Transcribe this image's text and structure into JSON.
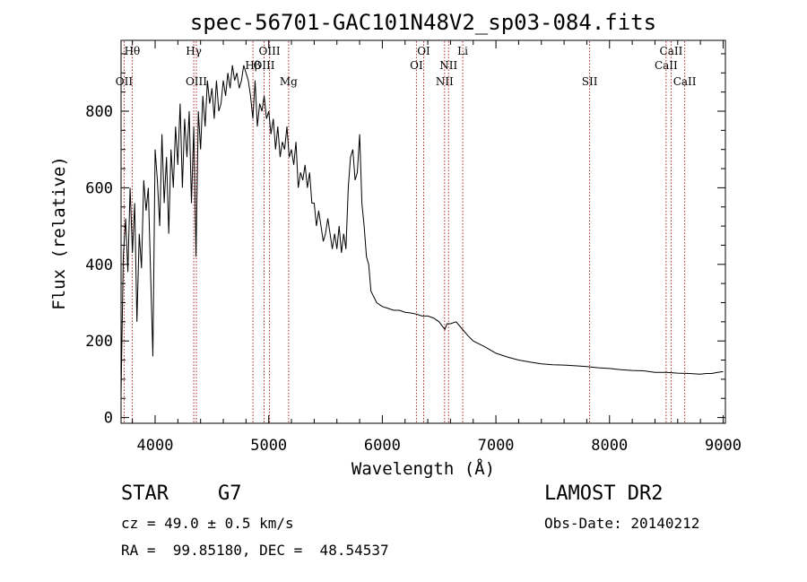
{
  "chart_data": {
    "type": "line",
    "title": "spec-56701-GAC101N48V2_sp03-084.fits",
    "xlabel": "Wavelength (Å)",
    "ylabel": "Flux (relative)",
    "xlim": [
      3700,
      9020
    ],
    "ylim": [
      -15,
      985
    ],
    "xticks": [
      4000,
      5000,
      6000,
      7000,
      8000,
      9000
    ],
    "yticks": [
      0,
      200,
      400,
      600,
      800
    ],
    "series": [
      {
        "x": [
          3700,
          3720,
          3740,
          3760,
          3780,
          3800,
          3820,
          3840,
          3860,
          3880,
          3900,
          3920,
          3940,
          3960,
          3980,
          4000,
          4020,
          4040,
          4060,
          4080,
          4100,
          4120,
          4140,
          4160,
          4180,
          4200,
          4220,
          4240,
          4260,
          4280,
          4300,
          4320,
          4340,
          4360,
          4380,
          4400,
          4420,
          4440,
          4460,
          4480,
          4500,
          4520,
          4540,
          4560,
          4580,
          4600,
          4620,
          4640,
          4660,
          4680,
          4700,
          4720,
          4740,
          4760,
          4780,
          4800,
          4820,
          4840,
          4860,
          4880,
          4900,
          4920,
          4940,
          4960,
          4980,
          5000,
          5020,
          5040,
          5060,
          5080,
          5100,
          5120,
          5140,
          5160,
          5180,
          5200,
          5220,
          5240,
          5260,
          5280,
          5300,
          5320,
          5340,
          5360,
          5380,
          5400,
          5420,
          5440,
          5460,
          5480,
          5500,
          5520,
          5540,
          5560,
          5580,
          5600,
          5620,
          5640,
          5660,
          5680,
          5700,
          5720,
          5740,
          5760,
          5780,
          5800,
          5820,
          5840,
          5860,
          5880,
          5900,
          5950,
          6000,
          6050,
          6100,
          6150,
          6200,
          6250,
          6300,
          6350,
          6400,
          6450,
          6500,
          6550,
          6570,
          6600,
          6650,
          6700,
          6750,
          6800,
          6900,
          7000,
          7100,
          7200,
          7300,
          7400,
          7500,
          7600,
          7700,
          7800,
          7900,
          8000,
          8100,
          8200,
          8300,
          8400,
          8500,
          8600,
          8700,
          8800,
          8850,
          8900,
          8950,
          9000
        ],
        "y": [
          60,
          420,
          520,
          380,
          600,
          430,
          560,
          250,
          480,
          390,
          620,
          540,
          600,
          380,
          160,
          700,
          620,
          500,
          740,
          560,
          680,
          480,
          700,
          600,
          760,
          660,
          820,
          600,
          780,
          680,
          800,
          560,
          760,
          420,
          800,
          700,
          840,
          760,
          880,
          820,
          860,
          780,
          880,
          800,
          820,
          880,
          840,
          900,
          860,
          920,
          880,
          900,
          860,
          880,
          920,
          900,
          880,
          840,
          780,
          880,
          760,
          820,
          800,
          840,
          780,
          800,
          740,
          780,
          700,
          760,
          680,
          720,
          700,
          760,
          680,
          700,
          660,
          720,
          600,
          640,
          620,
          660,
          600,
          640,
          560,
          560,
          500,
          540,
          500,
          460,
          480,
          520,
          480,
          440,
          480,
          440,
          500,
          430,
          480,
          440,
          600,
          680,
          700,
          620,
          640,
          740,
          560,
          500,
          420,
          400,
          330,
          300,
          290,
          285,
          280,
          280,
          275,
          273,
          270,
          265,
          265,
          260,
          250,
          230,
          245,
          245,
          250,
          232,
          215,
          200,
          185,
          168,
          158,
          150,
          145,
          140,
          138,
          137,
          135,
          133,
          130,
          128,
          125,
          123,
          122,
          118,
          118,
          116,
          115,
          113,
          115,
          115,
          118,
          120
        ]
      }
    ],
    "lines": [
      {
        "label": "OII",
        "x": 3727
      },
      {
        "label": "Hθ",
        "x": 3798
      },
      {
        "label": "Hγ",
        "x": 4340
      },
      {
        "label": "OIII",
        "x": 4363
      },
      {
        "label": "Hβ",
        "x": 4861
      },
      {
        "label": "OIII",
        "x": 4959
      },
      {
        "label": "OIII",
        "x": 5007
      },
      {
        "label": "Mg",
        "x": 5175
      },
      {
        "label": "OI",
        "x": 6300
      },
      {
        "label": "OI",
        "x": 6364
      },
      {
        "label": "NII",
        "x": 6548
      },
      {
        "label": "NII",
        "x": 6583
      },
      {
        "label": "Li",
        "x": 6708
      },
      {
        "label": "SII",
        "x": 7825
      },
      {
        "label": "CaII",
        "x": 8498
      },
      {
        "label": "CaII",
        "x": 8542
      },
      {
        "label": "CaII",
        "x": 8662
      }
    ],
    "grid": false,
    "colors": {
      "spectrum": "#000000",
      "line_markers": "#b22222"
    }
  },
  "info": {
    "object_class": "STAR",
    "subclass": "G7",
    "survey": "LAMOST DR2",
    "redshift": "cz = 49.0 ± 0.5 km/s",
    "obs_date": "Obs-Date: 20140212",
    "coords": "RA =  99.85180, DEC =  48.54537"
  }
}
